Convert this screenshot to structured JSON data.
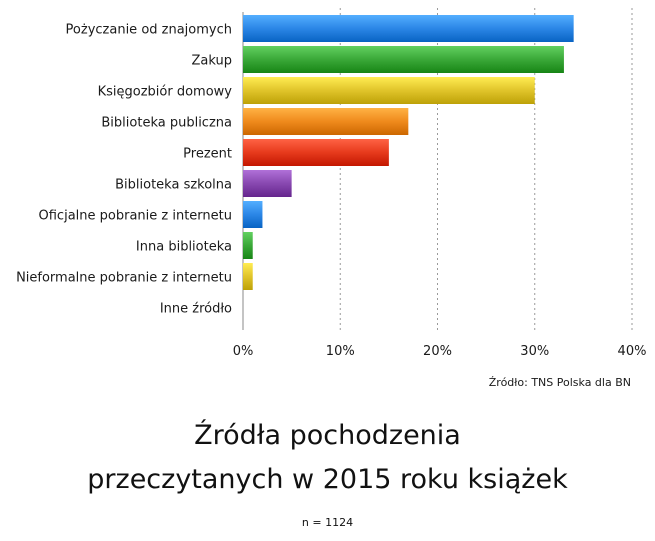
{
  "chart_data": {
    "type": "bar",
    "orientation": "horizontal",
    "categories": [
      "Pożyczanie od znajomych",
      "Zakup",
      "Księgozbiór domowy",
      "Biblioteka publiczna",
      "Prezent",
      "Biblioteka szkolna",
      "Oficjalne pobranie z internetu",
      "Inna biblioteka",
      "Nieformalne pobranie z internetu",
      "Inne źródło"
    ],
    "values": [
      34,
      33,
      30,
      17,
      15,
      5,
      2,
      1,
      1,
      0
    ],
    "colors": [
      "#2b86e6",
      "#3aa838",
      "#e0c42a",
      "#ef8a1c",
      "#e63a1c",
      "#8848b0",
      "#2b86e6",
      "#3aa838",
      "#e0c42a",
      "#999999"
    ],
    "xlim": [
      0,
      40
    ],
    "xticks": [
      0,
      10,
      20,
      30,
      40
    ],
    "tick_format": "%",
    "grid": true,
    "source": "Źródło: TNS Polska dla BN",
    "title_lines": [
      "Źródła pochodzenia",
      "przeczytanych w 2015 roku książek"
    ],
    "note": "n = 1124"
  }
}
